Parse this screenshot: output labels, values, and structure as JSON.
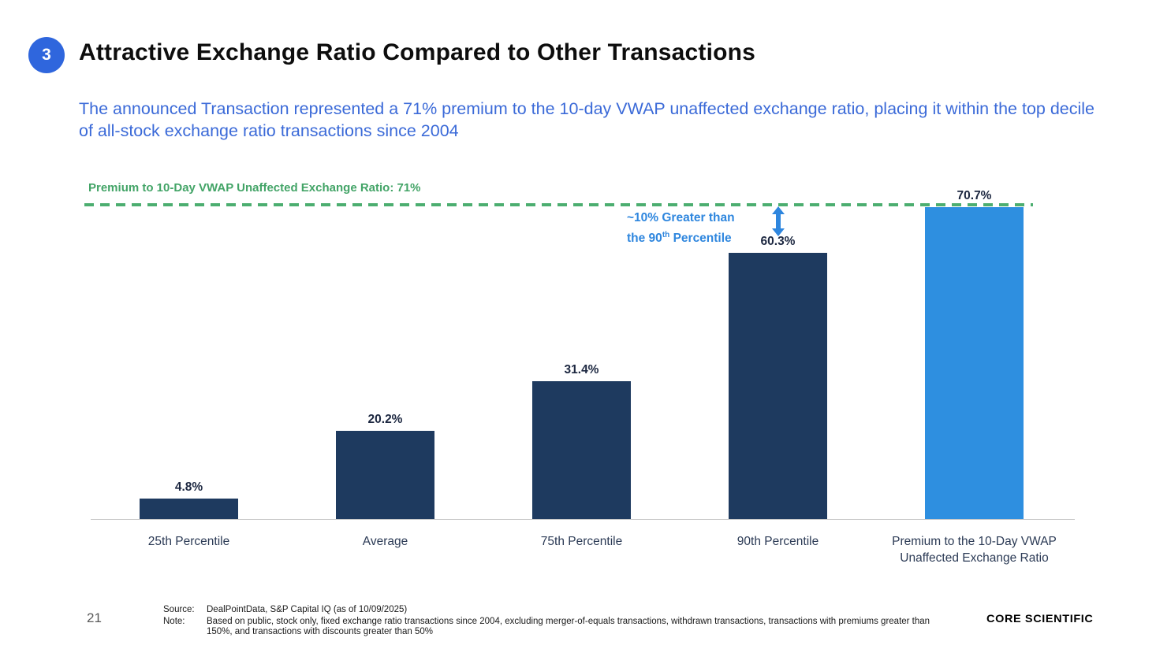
{
  "slide": {
    "badge_number": "3",
    "title": "Attractive Exchange Ratio Compared to Other Transactions",
    "subtitle": "The announced Transaction represented a 71% premium to the 10-day VWAP unaffected exchange ratio, placing it within the top decile of all-stock exchange ratio transactions since 2004"
  },
  "chart_data": {
    "type": "bar",
    "title": "Premium to 10-Day VWAP Unaffected Exchange Ratio: 71%",
    "categories": [
      "25th Percentile",
      "Average",
      "75th Percentile",
      "90th Percentile",
      "Premium to the 10-Day VWAP Unaffected Exchange Ratio"
    ],
    "category_lines": [
      [
        "25th Percentile"
      ],
      [
        "Average"
      ],
      [
        "75th Percentile"
      ],
      [
        "90th Percentile"
      ],
      [
        "Premium to the 10-Day VWAP",
        "Unaffected Exchange Ratio"
      ]
    ],
    "values": [
      4.8,
      20.2,
      31.4,
      60.3,
      70.7
    ],
    "value_labels": [
      "4.8%",
      "20.2%",
      "31.4%",
      "60.3%",
      "70.7%"
    ],
    "highlight_index": 4,
    "bar_color": "#1E3A5F",
    "highlight_bar_color": "#2E8FE0",
    "reference_line": {
      "value": 71,
      "label": "Premium to 10-Day VWAP Unaffected Exchange Ratio: 71%",
      "color": "#4CAE70",
      "style": "dashed"
    },
    "annotation": {
      "line1": "~10% Greater than",
      "line2_prefix": "the 90",
      "line2_sup": "th",
      "line2_suffix": " Percentile",
      "arrow_color": "#2E86DE"
    },
    "ylim": [
      0,
      71
    ],
    "grid": false,
    "legend": false,
    "xlabel": "",
    "ylabel": ""
  },
  "footer": {
    "page_number": "21",
    "source_label": "Source:",
    "source_text": "DealPointData, S&P Capital IQ (as of 10/09/2025)",
    "note_label": "Note:",
    "note_text": "Based on public, stock only, fixed exchange ratio transactions since 2004, excluding merger-of-equals transactions, withdrawn transactions, transactions with premiums greater than 150%, and transactions with discounts greater than 50%",
    "logo_text": "CORE SCIENTIFIC"
  }
}
